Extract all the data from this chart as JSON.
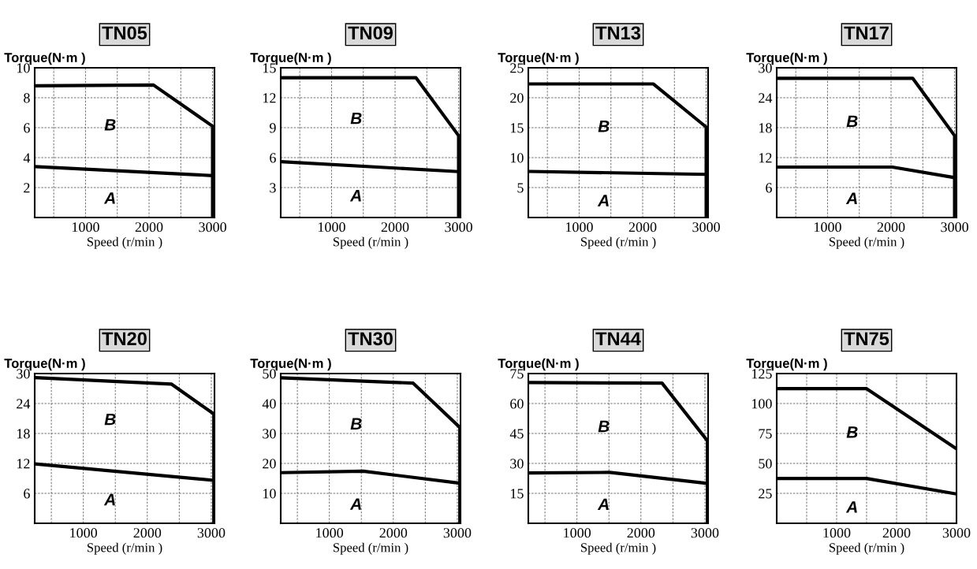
{
  "chart_data": [
    {
      "type": "line",
      "title": "TN05",
      "xlabel": "Speed (r/min )",
      "ylabel": "Torque(N·m )",
      "xlim": [
        200,
        3030
      ],
      "xticks": [
        {
          "value": 500,
          "label": null
        },
        1000,
        {
          "value": 1500,
          "label": null
        },
        2000,
        {
          "value": 2500,
          "label": null
        },
        3000
      ],
      "ylim": [
        0,
        10
      ],
      "yticks": [
        2,
        4,
        6,
        8,
        10
      ],
      "grid": true,
      "line_style": "solid",
      "series": [
        {
          "color": "#000000",
          "x": [
            200,
            2070,
            3000,
            3000
          ],
          "values": [
            8.8,
            8.85,
            6.1,
            0
          ]
        },
        {
          "color": "#000000",
          "x": [
            200,
            3000
          ],
          "values": [
            3.4,
            2.8
          ]
        }
      ],
      "annotations": [
        "B",
        "A"
      ]
    },
    {
      "type": "line",
      "title": "TN09",
      "xlabel": "Speed (r/min )",
      "ylabel": "Torque(N·m )",
      "xlim": [
        200,
        3030
      ],
      "xticks": [
        {
          "value": 500,
          "label": null
        },
        1000,
        {
          "value": 1500,
          "label": null
        },
        2000,
        {
          "value": 2500,
          "label": null
        },
        3000
      ],
      "ylim": [
        0,
        15
      ],
      "yticks": [
        3,
        6,
        9,
        12,
        15
      ],
      "grid": true,
      "line_style": "solid",
      "series": [
        {
          "color": "#000000",
          "x": [
            200,
            2330,
            3000,
            3000
          ],
          "values": [
            14.0,
            14.0,
            8.2,
            0
          ]
        },
        {
          "color": "#000000",
          "x": [
            200,
            3000
          ],
          "values": [
            5.6,
            4.6
          ]
        }
      ],
      "annotations": [
        "B",
        "A"
      ]
    },
    {
      "type": "line",
      "title": "TN13",
      "xlabel": "Speed (r/min )",
      "ylabel": "Torque(N·m )",
      "xlim": [
        200,
        3030
      ],
      "xticks": [
        {
          "value": 500,
          "label": null
        },
        1000,
        {
          "value": 1500,
          "label": null
        },
        2000,
        {
          "value": 2500,
          "label": null
        },
        3000
      ],
      "ylim": [
        0,
        25
      ],
      "yticks": [
        5,
        10,
        15,
        20,
        25
      ],
      "grid": true,
      "line_style": "solid",
      "series": [
        {
          "color": "#000000",
          "x": [
            200,
            2170,
            3000,
            3000
          ],
          "values": [
            22.3,
            22.3,
            15.1,
            0
          ]
        },
        {
          "color": "#000000",
          "x": [
            200,
            3000
          ],
          "values": [
            7.7,
            7.2
          ]
        }
      ],
      "annotations": [
        "B",
        "A"
      ]
    },
    {
      "type": "line",
      "title": "TN17",
      "xlabel": "Speed (r/min )",
      "ylabel": "Torque(N·m )",
      "xlim": [
        200,
        3030
      ],
      "xticks": [
        {
          "value": 500,
          "label": null
        },
        1000,
        {
          "value": 1500,
          "label": null
        },
        2000,
        {
          "value": 2500,
          "label": null
        },
        3000
      ],
      "ylim": [
        0,
        30
      ],
      "yticks": [
        6,
        12,
        18,
        24,
        30
      ],
      "grid": true,
      "line_style": "solid",
      "series": [
        {
          "color": "#000000",
          "x": [
            200,
            2340,
            3000,
            3000
          ],
          "values": [
            27.9,
            27.9,
            16.4,
            0
          ]
        },
        {
          "color": "#000000",
          "x": [
            200,
            2020,
            3000
          ],
          "values": [
            10.1,
            10.1,
            8.0
          ]
        }
      ],
      "annotations": [
        "B",
        "A"
      ]
    },
    {
      "type": "line",
      "title": "TN20",
      "xlabel": "Speed (r/min )",
      "ylabel": "Torque(N·m )",
      "xlim": [
        240,
        3050
      ],
      "xticks": [
        {
          "value": 500,
          "label": null
        },
        1000,
        {
          "value": 1500,
          "label": null
        },
        2000,
        {
          "value": 2500,
          "label": null
        },
        3000
      ],
      "ylim": [
        0,
        30
      ],
      "yticks": [
        6,
        12,
        18,
        24,
        30
      ],
      "grid": true,
      "line_style": "solid",
      "series": [
        {
          "color": "#000000",
          "x": [
            240,
            2375,
            3040,
            3040
          ],
          "values": [
            29.2,
            27.9,
            21.9,
            0
          ]
        },
        {
          "color": "#000000",
          "x": [
            240,
            3040
          ],
          "values": [
            11.9,
            8.6
          ]
        }
      ],
      "annotations": [
        "B",
        "A"
      ]
    },
    {
      "type": "line",
      "title": "TN30",
      "xlabel": "Speed (r/min )",
      "ylabel": "Torque(N·m )",
      "xlim": [
        240,
        3050
      ],
      "xticks": [
        {
          "value": 500,
          "label": null
        },
        1000,
        {
          "value": 1500,
          "label": null
        },
        2000,
        {
          "value": 2500,
          "label": null
        },
        3000
      ],
      "ylim": [
        0,
        50
      ],
      "yticks": [
        10,
        20,
        30,
        40,
        50
      ],
      "grid": true,
      "line_style": "solid",
      "series": [
        {
          "color": "#000000",
          "x": [
            240,
            2310,
            3040,
            3040
          ],
          "values": [
            48.6,
            46.8,
            32.0,
            0
          ]
        },
        {
          "color": "#000000",
          "x": [
            240,
            1530,
            3040
          ],
          "values": [
            16.9,
            17.4,
            13.4
          ]
        }
      ],
      "annotations": [
        "B",
        "A"
      ]
    },
    {
      "type": "line",
      "title": "TN44",
      "xlabel": "Speed (r/min )",
      "ylabel": "Torque(N·m )",
      "xlim": [
        240,
        3050
      ],
      "xticks": [
        {
          "value": 500,
          "label": null
        },
        1000,
        {
          "value": 1500,
          "label": null
        },
        2000,
        {
          "value": 2500,
          "label": null
        },
        3000
      ],
      "ylim": [
        0,
        75
      ],
      "yticks": [
        15,
        30,
        45,
        60,
        75
      ],
      "grid": true,
      "line_style": "solid",
      "series": [
        {
          "color": "#000000",
          "x": [
            240,
            2330,
            3040,
            3040
          ],
          "values": [
            70.5,
            70.2,
            41.3,
            0
          ]
        },
        {
          "color": "#000000",
          "x": [
            240,
            1510,
            3040
          ],
          "values": [
            25.2,
            25.5,
            20.0
          ]
        }
      ],
      "annotations": [
        "B",
        "A"
      ]
    },
    {
      "type": "line",
      "title": "TN75",
      "xlabel": "Speed (r/min )",
      "ylabel": "Torque(N·m )",
      "xlim": [
        0,
        3000
      ],
      "xticks": [
        {
          "value": 500,
          "label": null
        },
        1000,
        {
          "value": 1500,
          "label": null
        },
        2000,
        {
          "value": 2500,
          "label": null
        },
        3000
      ],
      "ylim": [
        0,
        125
      ],
      "yticks": [
        25,
        50,
        75,
        100,
        125
      ],
      "grid": true,
      "line_style": "solid",
      "series": [
        {
          "color": "#000000",
          "x": [
            0,
            1500,
            3000
          ],
          "values": [
            112.4,
            112.4,
            62.1
          ]
        },
        {
          "color": "#000000",
          "x": [
            0,
            1500,
            3000
          ],
          "values": [
            37.4,
            37.4,
            24.5
          ]
        }
      ],
      "annotations": [
        "B",
        "A"
      ]
    }
  ]
}
